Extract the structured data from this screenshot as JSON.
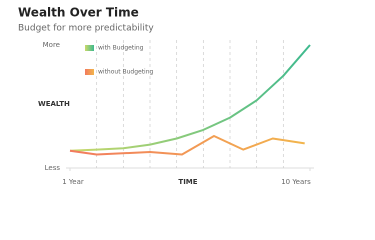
{
  "chart_data": {
    "type": "line",
    "title": "Wealth Over Time",
    "subtitle": "Budget for more predictability",
    "x_label": "TIME",
    "y_label": "WEALTH",
    "xlim": [
      1,
      10
    ],
    "xticks": [
      {
        "value": 1,
        "label": "1 Year"
      },
      {
        "value": 10,
        "label": "10 Years"
      }
    ],
    "xgrid": [
      2,
      3,
      4,
      5,
      6,
      7,
      8,
      9
    ],
    "ylim": [
      0,
      100
    ],
    "yticks": [
      {
        "value": 0,
        "label": "Less"
      },
      {
        "value": 100,
        "label": "More"
      }
    ],
    "series": [
      {
        "name": "with Budgeting",
        "color": [
          "#cbd96a",
          "#3db98e"
        ],
        "x": [
          1,
          2,
          3,
          4,
          5,
          6,
          7,
          8,
          9,
          10
        ],
        "values": [
          14,
          15,
          16,
          19,
          24,
          31,
          41,
          55,
          75,
          100
        ]
      },
      {
        "name": "without Budgeting",
        "color": [
          "#f27a5e",
          "#f2b54c"
        ],
        "x": [
          1,
          2,
          4,
          5.2,
          6.4,
          7.5,
          8.6,
          9.8
        ],
        "values": [
          14,
          11,
          13,
          11,
          26,
          15,
          24,
          20
        ]
      }
    ]
  }
}
